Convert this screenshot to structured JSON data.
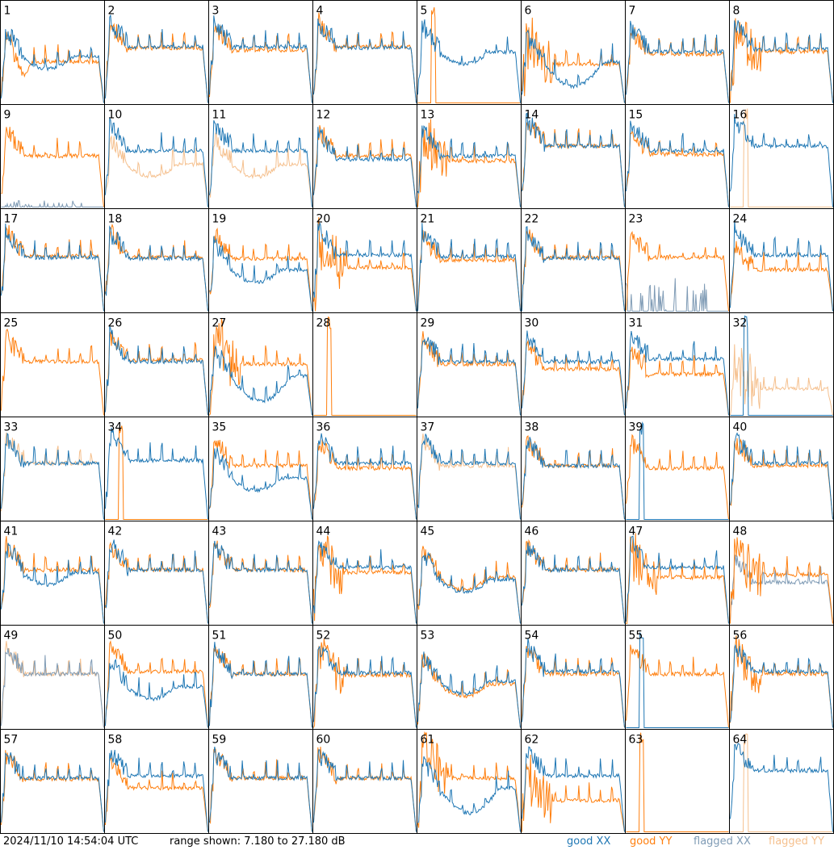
{
  "footer": {
    "timestamp": "2024/11/10 14:54:04 UTC",
    "range_text": "range shown: 7.180 to 27.180 dB"
  },
  "legend": [
    {
      "label": "good XX",
      "color": "#1f77b4"
    },
    {
      "label": "good YY",
      "color": "#ff7f0e"
    },
    {
      "label": "flagged XX",
      "color": "#7f9bb5"
    },
    {
      "label": "flagged YY",
      "color": "#f5c08e"
    }
  ],
  "chart_data": {
    "type": "line",
    "layout": "8x8 small multiples, one panel per tile",
    "y_range_db": [
      7.18,
      27.18
    ],
    "colors": {
      "good_xx": "#1f77b4",
      "good_yy": "#ff7f0e",
      "flagged_xx": "#7f9bb5",
      "flagged_yy": "#f5c08e"
    },
    "tiles": [
      {
        "id": "1",
        "xx": {
          "status": "good",
          "base": 16.5,
          "shape": "dip_mid"
        },
        "yy": {
          "status": "good",
          "base": 15.5,
          "shape": "dip_left"
        }
      },
      {
        "id": "2",
        "xx": {
          "status": "good",
          "base": 18.5,
          "shape": "normal"
        },
        "yy": {
          "status": "good",
          "base": 18.2,
          "shape": "normal"
        }
      },
      {
        "id": "3",
        "xx": {
          "status": "good",
          "base": 18.5,
          "shape": "normal"
        },
        "yy": {
          "status": "good",
          "base": 17.8,
          "shape": "normal"
        }
      },
      {
        "id": "4",
        "xx": {
          "status": "good",
          "base": 18.3,
          "shape": "normal"
        },
        "yy": {
          "status": "good",
          "base": 18.5,
          "shape": "normal"
        }
      },
      {
        "id": "5",
        "xx": {
          "status": "good",
          "base": 17.5,
          "shape": "dip_mid"
        },
        "yy": {
          "status": "good",
          "base": 7.2,
          "shape": "spike"
        }
      },
      {
        "id": "6",
        "xx": {
          "status": "good",
          "base": 15.5,
          "shape": "deep_dip"
        },
        "yy": {
          "status": "good",
          "base": 15.0,
          "shape": "noisy_left"
        }
      },
      {
        "id": "7",
        "xx": {
          "status": "good",
          "base": 17.5,
          "shape": "normal"
        },
        "yy": {
          "status": "good",
          "base": 17.0,
          "shape": "normal"
        }
      },
      {
        "id": "8",
        "xx": {
          "status": "good",
          "base": 18.0,
          "shape": "normal"
        },
        "yy": {
          "status": "good",
          "base": 17.5,
          "shape": "noisy_left"
        }
      },
      {
        "id": "9",
        "xx": {
          "status": "flagged",
          "base": 8.0,
          "shape": "sparse_spikes"
        },
        "yy": {
          "status": "good",
          "base": 17.5,
          "shape": "normal"
        }
      },
      {
        "id": "10",
        "xx": {
          "status": "good",
          "base": 18.5,
          "shape": "normal"
        },
        "yy": {
          "status": "flagged",
          "base": 15.8,
          "shape": "dip_mid"
        }
      },
      {
        "id": "11",
        "xx": {
          "status": "good",
          "base": 18.5,
          "shape": "normal"
        },
        "yy": {
          "status": "flagged",
          "base": 15.8,
          "shape": "dip_mid"
        }
      },
      {
        "id": "12",
        "xx": {
          "status": "good",
          "base": 16.8,
          "shape": "normal"
        },
        "yy": {
          "status": "good",
          "base": 17.5,
          "shape": "normal"
        }
      },
      {
        "id": "13",
        "xx": {
          "status": "good",
          "base": 17.5,
          "shape": "normal"
        },
        "yy": {
          "status": "good",
          "base": 16.5,
          "shape": "noisy_left"
        }
      },
      {
        "id": "14",
        "xx": {
          "status": "good",
          "base": 19.5,
          "shape": "normal"
        },
        "yy": {
          "status": "good",
          "base": 19.5,
          "shape": "normal"
        }
      },
      {
        "id": "15",
        "xx": {
          "status": "good",
          "base": 18.5,
          "shape": "normal"
        },
        "yy": {
          "status": "good",
          "base": 17.8,
          "shape": "normal"
        }
      },
      {
        "id": "16",
        "xx": {
          "status": "good",
          "base": 19.5,
          "shape": "normal"
        },
        "yy": {
          "status": "flagged",
          "base": 7.2,
          "shape": "spike"
        }
      },
      {
        "id": "17",
        "xx": {
          "status": "good",
          "base": 18.0,
          "shape": "normal"
        },
        "yy": {
          "status": "good",
          "base": 18.3,
          "shape": "normal"
        }
      },
      {
        "id": "18",
        "xx": {
          "status": "good",
          "base": 17.8,
          "shape": "normal"
        },
        "yy": {
          "status": "good",
          "base": 18.0,
          "shape": "normal"
        }
      },
      {
        "id": "19",
        "xx": {
          "status": "good",
          "base": 15.5,
          "shape": "dip_mid"
        },
        "yy": {
          "status": "good",
          "base": 17.8,
          "shape": "normal"
        }
      },
      {
        "id": "20",
        "xx": {
          "status": "good",
          "base": 18.5,
          "shape": "normal"
        },
        "yy": {
          "status": "good",
          "base": 16.0,
          "shape": "noisy_left"
        }
      },
      {
        "id": "21",
        "xx": {
          "status": "good",
          "base": 18.2,
          "shape": "normal"
        },
        "yy": {
          "status": "good",
          "base": 17.5,
          "shape": "normal"
        }
      },
      {
        "id": "22",
        "xx": {
          "status": "good",
          "base": 17.8,
          "shape": "normal"
        },
        "yy": {
          "status": "good",
          "base": 18.0,
          "shape": "normal"
        }
      },
      {
        "id": "23",
        "xx": {
          "status": "flagged",
          "base": 11.5,
          "shape": "sparse_spikes"
        },
        "yy": {
          "status": "good",
          "base": 18.0,
          "shape": "normal"
        }
      },
      {
        "id": "24",
        "xx": {
          "status": "good",
          "base": 18.5,
          "shape": "normal"
        },
        "yy": {
          "status": "good",
          "base": 15.5,
          "shape": "normal"
        }
      },
      {
        "id": "25",
        "xx": {
          "status": "none",
          "base": 0,
          "shape": "none"
        },
        "yy": {
          "status": "good",
          "base": 18.0,
          "shape": "normal"
        }
      },
      {
        "id": "26",
        "xx": {
          "status": "good",
          "base": 18.0,
          "shape": "normal"
        },
        "yy": {
          "status": "good",
          "base": 18.3,
          "shape": "normal"
        }
      },
      {
        "id": "27",
        "xx": {
          "status": "good",
          "base": 15.0,
          "shape": "deep_dip"
        },
        "yy": {
          "status": "good",
          "base": 17.5,
          "shape": "noisy_left"
        }
      },
      {
        "id": "28",
        "xx": {
          "status": "none",
          "base": 0,
          "shape": "none"
        },
        "yy": {
          "status": "good",
          "base": 7.2,
          "shape": "spike"
        }
      },
      {
        "id": "29",
        "xx": {
          "status": "good",
          "base": 18.0,
          "shape": "normal"
        },
        "yy": {
          "status": "good",
          "base": 17.5,
          "shape": "normal"
        }
      },
      {
        "id": "30",
        "xx": {
          "status": "good",
          "base": 18.0,
          "shape": "normal"
        },
        "yy": {
          "status": "good",
          "base": 16.5,
          "shape": "normal"
        }
      },
      {
        "id": "31",
        "xx": {
          "status": "good",
          "base": 18.5,
          "shape": "normal"
        },
        "yy": {
          "status": "good",
          "base": 15.5,
          "shape": "normal"
        }
      },
      {
        "id": "32",
        "xx": {
          "status": "good",
          "base": 7.2,
          "shape": "spike"
        },
        "yy": {
          "status": "flagged",
          "base": 12.5,
          "shape": "noisy_left"
        }
      },
      {
        "id": "33",
        "xx": {
          "status": "good",
          "base": 18.5,
          "shape": "normal"
        },
        "yy": {
          "status": "flagged",
          "base": 18.5,
          "shape": "normal"
        }
      },
      {
        "id": "34",
        "xx": {
          "status": "good",
          "base": 19.0,
          "shape": "normal"
        },
        "yy": {
          "status": "good",
          "base": 7.2,
          "shape": "spike"
        }
      },
      {
        "id": "35",
        "xx": {
          "status": "good",
          "base": 15.5,
          "shape": "dip_mid"
        },
        "yy": {
          "status": "good",
          "base": 18.0,
          "shape": "normal"
        }
      },
      {
        "id": "36",
        "xx": {
          "status": "good",
          "base": 18.5,
          "shape": "normal"
        },
        "yy": {
          "status": "good",
          "base": 17.5,
          "shape": "normal"
        }
      },
      {
        "id": "37",
        "xx": {
          "status": "good",
          "base": 18.5,
          "shape": "normal"
        },
        "yy": {
          "status": "flagged",
          "base": 18.0,
          "shape": "normal"
        }
      },
      {
        "id": "38",
        "xx": {
          "status": "good",
          "base": 18.0,
          "shape": "normal"
        },
        "yy": {
          "status": "good",
          "base": 18.0,
          "shape": "normal"
        }
      },
      {
        "id": "39",
        "xx": {
          "status": "good",
          "base": 7.2,
          "shape": "spike"
        },
        "yy": {
          "status": "good",
          "base": 17.5,
          "shape": "normal"
        }
      },
      {
        "id": "40",
        "xx": {
          "status": "good",
          "base": 18.5,
          "shape": "normal"
        },
        "yy": {
          "status": "good",
          "base": 18.0,
          "shape": "normal"
        }
      },
      {
        "id": "41",
        "xx": {
          "status": "good",
          "base": 17.5,
          "shape": "dip_mid"
        },
        "yy": {
          "status": "good",
          "base": 18.0,
          "shape": "normal"
        }
      },
      {
        "id": "42",
        "xx": {
          "status": "good",
          "base": 18.0,
          "shape": "normal"
        },
        "yy": {
          "status": "good",
          "base": 18.0,
          "shape": "normal"
        }
      },
      {
        "id": "43",
        "xx": {
          "status": "good",
          "base": 18.0,
          "shape": "normal"
        },
        "yy": {
          "status": "good",
          "base": 18.0,
          "shape": "normal"
        }
      },
      {
        "id": "44",
        "xx": {
          "status": "good",
          "base": 18.5,
          "shape": "normal"
        },
        "yy": {
          "status": "good",
          "base": 17.5,
          "shape": "noisy_left"
        }
      },
      {
        "id": "45",
        "xx": {
          "status": "good",
          "base": 16.0,
          "shape": "dip_mid"
        },
        "yy": {
          "status": "good",
          "base": 16.5,
          "shape": "dip_mid"
        }
      },
      {
        "id": "46",
        "xx": {
          "status": "good",
          "base": 18.0,
          "shape": "normal"
        },
        "yy": {
          "status": "good",
          "base": 18.0,
          "shape": "normal"
        }
      },
      {
        "id": "47",
        "xx": {
          "status": "good",
          "base": 18.5,
          "shape": "normal"
        },
        "yy": {
          "status": "good",
          "base": 16.5,
          "shape": "noisy_left"
        }
      },
      {
        "id": "48",
        "xx": {
          "status": "flagged",
          "base": 15.5,
          "shape": "normal"
        },
        "yy": {
          "status": "good",
          "base": 17.0,
          "shape": "noisy_left"
        }
      },
      {
        "id": "49",
        "xx": {
          "status": "flagged",
          "base": 18.0,
          "shape": "normal"
        },
        "yy": {
          "status": "flagged",
          "base": 18.0,
          "shape": "normal"
        }
      },
      {
        "id": "50",
        "xx": {
          "status": "good",
          "base": 15.5,
          "shape": "dip_mid"
        },
        "yy": {
          "status": "good",
          "base": 18.5,
          "shape": "normal"
        }
      },
      {
        "id": "51",
        "xx": {
          "status": "good",
          "base": 18.0,
          "shape": "normal"
        },
        "yy": {
          "status": "good",
          "base": 18.0,
          "shape": "normal"
        }
      },
      {
        "id": "52",
        "xx": {
          "status": "good",
          "base": 18.2,
          "shape": "normal"
        },
        "yy": {
          "status": "good",
          "base": 17.8,
          "shape": "noisy_left"
        }
      },
      {
        "id": "53",
        "xx": {
          "status": "good",
          "base": 16.5,
          "shape": "dip_mid"
        },
        "yy": {
          "status": "good",
          "base": 16.0,
          "shape": "dip_mid"
        }
      },
      {
        "id": "54",
        "xx": {
          "status": "good",
          "base": 18.5,
          "shape": "normal"
        },
        "yy": {
          "status": "good",
          "base": 18.0,
          "shape": "normal"
        }
      },
      {
        "id": "55",
        "xx": {
          "status": "good",
          "base": 7.2,
          "shape": "spike"
        },
        "yy": {
          "status": "good",
          "base": 18.0,
          "shape": "normal"
        }
      },
      {
        "id": "56",
        "xx": {
          "status": "good",
          "base": 18.5,
          "shape": "normal"
        },
        "yy": {
          "status": "good",
          "base": 18.0,
          "shape": "noisy_left"
        }
      },
      {
        "id": "57",
        "xx": {
          "status": "good",
          "base": 18.0,
          "shape": "normal"
        },
        "yy": {
          "status": "good",
          "base": 17.8,
          "shape": "normal"
        }
      },
      {
        "id": "58",
        "xx": {
          "status": "good",
          "base": 18.5,
          "shape": "normal"
        },
        "yy": {
          "status": "good",
          "base": 16.0,
          "shape": "normal"
        }
      },
      {
        "id": "59",
        "xx": {
          "status": "good",
          "base": 18.0,
          "shape": "normal"
        },
        "yy": {
          "status": "good",
          "base": 18.0,
          "shape": "normal"
        }
      },
      {
        "id": "60",
        "xx": {
          "status": "good",
          "base": 18.0,
          "shape": "normal"
        },
        "yy": {
          "status": "good",
          "base": 18.0,
          "shape": "normal"
        }
      },
      {
        "id": "61",
        "xx": {
          "status": "good",
          "base": 16.0,
          "shape": "deep_dip"
        },
        "yy": {
          "status": "good",
          "base": 18.0,
          "shape": "noisy_left"
        }
      },
      {
        "id": "62",
        "xx": {
          "status": "good",
          "base": 18.5,
          "shape": "normal"
        },
        "yy": {
          "status": "good",
          "base": 13.5,
          "shape": "noisy_left"
        }
      },
      {
        "id": "63",
        "xx": {
          "status": "none",
          "base": 0,
          "shape": "none"
        },
        "yy": {
          "status": "good",
          "base": 7.2,
          "shape": "spike"
        }
      },
      {
        "id": "64",
        "xx": {
          "status": "good",
          "base": 19.5,
          "shape": "normal"
        },
        "yy": {
          "status": "flagged",
          "base": 7.2,
          "shape": "spike"
        }
      }
    ]
  }
}
